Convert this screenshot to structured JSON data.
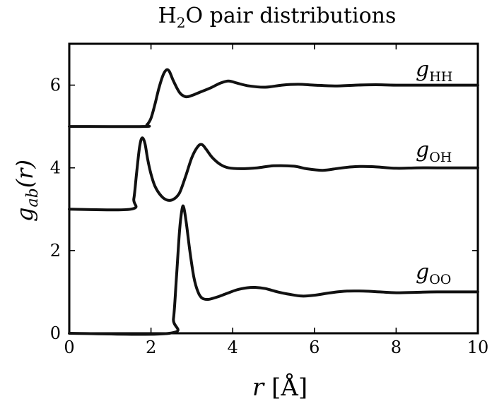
{
  "chart_data": {
    "type": "line",
    "title": "H₂O pair distributions",
    "xlabel": "r [Å]",
    "ylabel": "g_ab(r)",
    "xlim": [
      0,
      10
    ],
    "ylim": [
      0,
      7
    ],
    "x_ticks": [
      0,
      2,
      4,
      6,
      8,
      10
    ],
    "y_ticks": [
      0,
      2,
      4,
      6
    ],
    "grid": false,
    "legend": "none",
    "line_color": "#111111",
    "series": [
      {
        "name": "g_OO",
        "label_main": "g",
        "label_sub": "OO",
        "x": [
          0,
          2.45,
          2.55,
          2.62,
          2.7,
          2.76,
          2.8,
          2.86,
          2.95,
          3.05,
          3.15,
          3.25,
          3.4,
          3.6,
          3.85,
          4.1,
          4.35,
          4.55,
          4.8,
          5.1,
          5.4,
          5.7,
          6.0,
          6.4,
          6.8,
          7.2,
          7.6,
          8.0,
          8.5,
          9.0,
          10.0
        ],
        "values": [
          0.0,
          0.0,
          0.35,
          1.3,
          2.5,
          3.0,
          3.05,
          2.7,
          2.0,
          1.35,
          1.0,
          0.85,
          0.82,
          0.87,
          0.96,
          1.05,
          1.1,
          1.11,
          1.08,
          1.0,
          0.94,
          0.9,
          0.92,
          0.98,
          1.02,
          1.02,
          1.0,
          0.98,
          0.99,
          1.0,
          1.0
        ]
      },
      {
        "name": "g_OH",
        "label_main": "g",
        "label_sub": "OH",
        "x": [
          0,
          1.5,
          1.58,
          1.65,
          1.72,
          1.78,
          1.85,
          1.92,
          2.0,
          2.1,
          2.25,
          2.4,
          2.55,
          2.7,
          2.85,
          3.0,
          3.15,
          3.25,
          3.35,
          3.5,
          3.7,
          3.9,
          4.2,
          4.6,
          5.0,
          5.5,
          5.8,
          6.2,
          6.6,
          7.0,
          7.4,
          8.0,
          8.5,
          9.0,
          10.0
        ],
        "values": [
          3.0,
          3.0,
          3.25,
          3.9,
          4.5,
          4.72,
          4.6,
          4.2,
          3.85,
          3.55,
          3.32,
          3.22,
          3.24,
          3.4,
          3.8,
          4.25,
          4.52,
          4.56,
          4.45,
          4.25,
          4.08,
          4.0,
          3.98,
          4.0,
          4.05,
          4.04,
          3.98,
          3.94,
          3.99,
          4.03,
          4.03,
          3.99,
          4.0,
          4.0,
          4.0
        ]
      },
      {
        "name": "g_HH",
        "label_main": "g",
        "label_sub": "HH",
        "x": [
          0,
          1.8,
          1.9,
          2.0,
          2.1,
          2.2,
          2.3,
          2.38,
          2.45,
          2.55,
          2.7,
          2.85,
          3.0,
          3.2,
          3.45,
          3.7,
          3.9,
          4.1,
          4.4,
          4.8,
          5.2,
          5.6,
          6.0,
          6.5,
          7.0,
          7.5,
          8.0,
          9.0,
          10.0
        ],
        "values": [
          5.0,
          5.0,
          5.04,
          5.2,
          5.55,
          5.95,
          6.25,
          6.37,
          6.33,
          6.1,
          5.82,
          5.72,
          5.75,
          5.83,
          5.93,
          6.05,
          6.1,
          6.05,
          5.98,
          5.95,
          6.0,
          6.02,
          6.0,
          5.98,
          6.0,
          6.01,
          6.0,
          6.0,
          6.0
        ]
      }
    ]
  }
}
